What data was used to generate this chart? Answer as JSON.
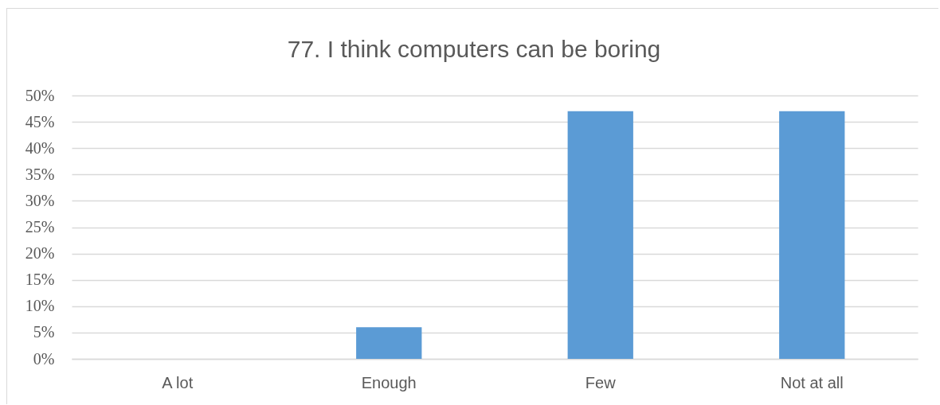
{
  "chart_data": {
    "type": "bar",
    "title": "77. I think computers can be boring",
    "categories": [
      "A lot",
      "Enough",
      "Few",
      "Not at all"
    ],
    "values": [
      0,
      6,
      47,
      47
    ],
    "color": "#5b9bd5",
    "ylim": [
      0,
      50
    ],
    "yticks": [
      {
        "value": 0,
        "label": "0%"
      },
      {
        "value": 5,
        "label": "5%"
      },
      {
        "value": 10,
        "label": "10%"
      },
      {
        "value": 15,
        "label": "15%"
      },
      {
        "value": 20,
        "label": "20%"
      },
      {
        "value": 25,
        "label": "25%"
      },
      {
        "value": 30,
        "label": "30%"
      },
      {
        "value": 35,
        "label": "35%"
      },
      {
        "value": 40,
        "label": "40%"
      },
      {
        "value": 45,
        "label": "45%"
      },
      {
        "value": 50,
        "label": "50%"
      }
    ],
    "grid": "y"
  }
}
